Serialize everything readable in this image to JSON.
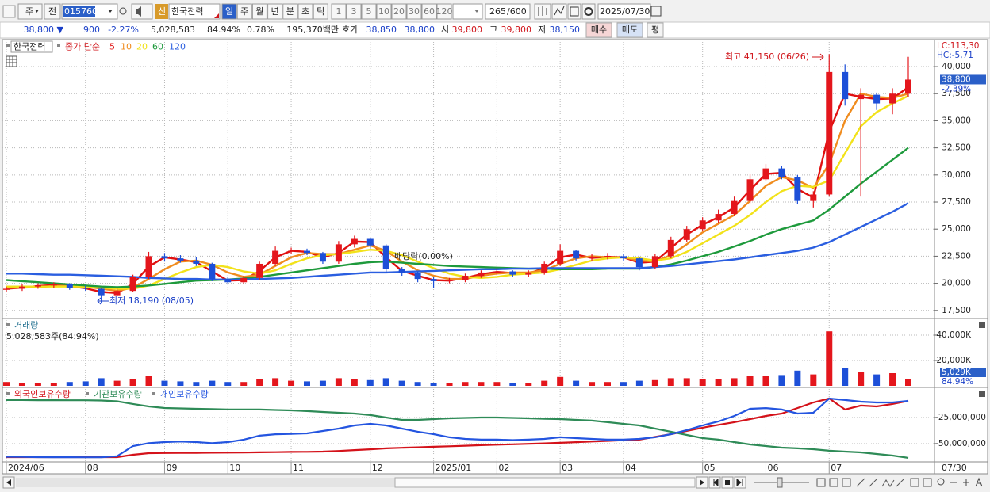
{
  "toolbar": {
    "period_type": "주",
    "prev": "전",
    "code": "015760",
    "badge": "신",
    "name": "한국전력",
    "periods": [
      "일",
      "주",
      "월",
      "년",
      "분",
      "초",
      "틱"
    ],
    "intervals": [
      "1",
      "3",
      "5",
      "10",
      "20",
      "30",
      "60",
      "120"
    ],
    "count": "265",
    "max_count": "/600",
    "date": "2025/07/30"
  },
  "info_bar": {
    "price": "38,800 ▼",
    "change": "900",
    "change_rate": "-2.27%",
    "volume": "5,028,583",
    "volume_ratio": "84.94%",
    "turnover": "0.78%",
    "amount": "195,370백만",
    "quote_label": "호가",
    "ask": "38,850",
    "bid": "38,800",
    "open_label": "시",
    "open": "39,800",
    "high_label": "고",
    "high": "39,800",
    "low_label": "저",
    "low": "38,150",
    "buy": "매수",
    "sell": "매도",
    "avg": "평"
  },
  "chart_data": [
    {
      "type": "candlestick",
      "name": "한국전력",
      "legend_title": "종가 단순",
      "categories": [
        "2024/06",
        null,
        null,
        null,
        null,
        "08",
        null,
        null,
        null,
        null,
        "09",
        null,
        null,
        null,
        "10",
        null,
        null,
        null,
        "11",
        null,
        null,
        null,
        null,
        "12",
        null,
        null,
        null,
        "2025/01",
        null,
        null,
        null,
        "02",
        null,
        null,
        null,
        "03",
        null,
        null,
        null,
        "04",
        null,
        null,
        null,
        null,
        "05",
        null,
        null,
        null,
        "06",
        null,
        null,
        null,
        "07",
        null,
        null,
        null,
        null,
        null
      ],
      "ohlc": {
        "open": [
          19400,
          19500,
          19700,
          19800,
          19900,
          19600,
          19500,
          18900,
          19300,
          20600,
          22500,
          22300,
          22100,
          21800,
          20400,
          20100,
          20500,
          21800,
          23000,
          23000,
          22800,
          22000,
          23600,
          24100,
          23500,
          21300,
          21000,
          20400,
          20200,
          20300,
          20700,
          21000,
          21100,
          20800,
          21000,
          21800,
          23000,
          22300,
          22400,
          22500,
          22300,
          21500,
          22500,
          24000,
          25000,
          25800,
          26400,
          27600,
          29600,
          30600,
          29800,
          27600,
          28200,
          39500,
          37000,
          37400,
          36600,
          37500
        ],
        "high": [
          19700,
          19900,
          20000,
          20100,
          20000,
          19800,
          19600,
          19500,
          20800,
          22900,
          22800,
          22600,
          22400,
          21900,
          20600,
          20700,
          22000,
          23400,
          23300,
          23200,
          22900,
          23900,
          24400,
          24200,
          23600,
          21500,
          21100,
          20600,
          20500,
          20900,
          21200,
          21300,
          21200,
          21200,
          22000,
          23600,
          23100,
          22700,
          22800,
          22700,
          22400,
          22700,
          24300,
          25300,
          26100,
          26800,
          28000,
          30100,
          31000,
          30800,
          30000,
          28500,
          41150,
          40200,
          38000,
          37600,
          38000,
          40900
        ],
        "low": [
          19200,
          19300,
          19500,
          19600,
          19400,
          19300,
          18190,
          18800,
          19200,
          20400,
          22000,
          21900,
          21600,
          20200,
          19900,
          19900,
          20300,
          21600,
          22700,
          22600,
          21800,
          21800,
          23300,
          23200,
          21000,
          20700,
          20100,
          19600,
          20000,
          20100,
          20500,
          20800,
          20600,
          20600,
          20800,
          21600,
          22100,
          22100,
          22200,
          22100,
          21200,
          21300,
          22300,
          23800,
          24800,
          25600,
          26200,
          27400,
          29400,
          29600,
          27300,
          27000,
          28000,
          36400,
          28000,
          36000,
          35600,
          37200
        ],
        "close": [
          19500,
          19700,
          19800,
          19900,
          19600,
          19500,
          18900,
          19300,
          20600,
          22500,
          22300,
          22100,
          21800,
          20400,
          20100,
          20500,
          21800,
          23000,
          23000,
          22800,
          22000,
          23600,
          24100,
          23500,
          21300,
          21000,
          20400,
          20200,
          20300,
          20700,
          21000,
          21100,
          20800,
          21000,
          21800,
          23000,
          22300,
          22400,
          22500,
          22300,
          21500,
          22500,
          24000,
          25000,
          25800,
          26400,
          27600,
          29600,
          30600,
          29800,
          27600,
          28200,
          39500,
          37000,
          37400,
          36600,
          37500,
          38800
        ]
      },
      "up_color": "#e4161c",
      "down_color": "#1d4fd8",
      "series": [
        {
          "name": "5",
          "color": "#e01010",
          "values": [
            19500,
            19600,
            19750,
            19850,
            19750,
            19550,
            19200,
            19100,
            19950,
            21550,
            22400,
            22200,
            21950,
            21100,
            20250,
            20300,
            21150,
            22400,
            23000,
            22900,
            22400,
            22800,
            23850,
            23800,
            22400,
            21150,
            20700,
            20300,
            20250,
            20500,
            20850,
            21050,
            20950,
            20900,
            21400,
            22400,
            22650,
            22350,
            22450,
            22400,
            21900,
            22000,
            23250,
            24500,
            25400,
            26100,
            27000,
            28600,
            30100,
            30200,
            28700,
            27900,
            34000,
            37500,
            37200,
            37000,
            37050,
            38100
          ]
        },
        {
          "name": "10",
          "color": "#f08c1e",
          "values": [
            19600,
            19600,
            19650,
            19750,
            19750,
            19700,
            19500,
            19300,
            19600,
            20400,
            21300,
            22000,
            22100,
            21700,
            21000,
            20600,
            20800,
            21600,
            22400,
            22800,
            22700,
            22700,
            23100,
            23500,
            23000,
            22000,
            21200,
            20700,
            20400,
            20400,
            20700,
            20900,
            21000,
            21000,
            21200,
            21800,
            22300,
            22500,
            22400,
            22400,
            22100,
            22000,
            22600,
            23600,
            24700,
            25500,
            26300,
            27600,
            29000,
            29800,
            29500,
            28800,
            31000,
            35000,
            37500,
            37200,
            37100,
            37500
          ]
        },
        {
          "name": "20",
          "color": "#f2e21a",
          "values": [
            19700,
            19700,
            19700,
            19700,
            19700,
            19700,
            19600,
            19500,
            19500,
            19800,
            20400,
            21000,
            21500,
            21700,
            21500,
            21100,
            20900,
            21200,
            21800,
            22300,
            22600,
            22700,
            22900,
            23100,
            23000,
            22600,
            22000,
            21400,
            20900,
            20600,
            20500,
            20600,
            20800,
            20900,
            21000,
            21300,
            21700,
            22100,
            22300,
            22400,
            22300,
            22100,
            22300,
            22900,
            23700,
            24500,
            25300,
            26300,
            27500,
            28500,
            29000,
            28900,
            29500,
            32000,
            34500,
            35800,
            36600,
            37300
          ]
        },
        {
          "name": "60",
          "color": "#1e9a3c",
          "values": [
            20300,
            20200,
            20100,
            20000,
            19900,
            19800,
            19700,
            19650,
            19700,
            19800,
            19950,
            20100,
            20250,
            20300,
            20350,
            20450,
            20600,
            20800,
            21000,
            21200,
            21400,
            21600,
            21800,
            21950,
            22000,
            21900,
            21800,
            21700,
            21600,
            21550,
            21500,
            21450,
            21400,
            21350,
            21350,
            21300,
            21300,
            21300,
            21350,
            21350,
            21350,
            21500,
            21750,
            22100,
            22500,
            22900,
            23400,
            23900,
            24500,
            25000,
            25400,
            25800,
            26800,
            28000,
            29200,
            30300,
            31400,
            32500
          ]
        },
        {
          "name": "120",
          "color": "#2a5ee0",
          "values": [
            20900,
            20900,
            20850,
            20800,
            20800,
            20750,
            20700,
            20650,
            20600,
            20500,
            20450,
            20400,
            20400,
            20350,
            20350,
            20350,
            20400,
            20450,
            20500,
            20600,
            20700,
            20800,
            20900,
            21000,
            21000,
            21050,
            21100,
            21150,
            21200,
            21250,
            21300,
            21300,
            21350,
            21350,
            21400,
            21400,
            21400,
            21400,
            21400,
            21400,
            21400,
            21500,
            21600,
            21750,
            21900,
            22050,
            22200,
            22400,
            22600,
            22800,
            23000,
            23300,
            23800,
            24500,
            25200,
            25900,
            26600,
            27400
          ]
        }
      ],
      "ylim": [
        16900,
        42270
      ],
      "yticks": [
        {
          "value": 17500,
          "label": "17,500"
        },
        {
          "value": 20000,
          "label": "20,000"
        },
        {
          "value": 22500,
          "label": "22,500"
        },
        {
          "value": 25000,
          "label": "25,000"
        },
        {
          "value": 27500,
          "label": "27,500"
        },
        {
          "value": 30000,
          "label": "30,000"
        },
        {
          "value": 32500,
          "label": "32,500"
        },
        {
          "value": 35000,
          "label": "35,000"
        },
        {
          "value": 37500,
          "label": "37,500"
        },
        {
          "value": 40000,
          "label": "40,000"
        }
      ],
      "grid": true,
      "annotations": [
        "최고 41,150 (06/26)",
        "최저 18,190 (08/05)",
        "배당락(0.00%)"
      ],
      "lc_label": "LC:113,30",
      "hc_label": "HC:-5,71",
      "current_label": "38,800",
      "current_change_label": "-2.39%"
    },
    {
      "type": "bar",
      "title": "거래량",
      "subtitle": "5,028,583주(84.94%)",
      "values": [
        3000,
        2500,
        2500,
        2500,
        3000,
        3500,
        6000,
        4000,
        5000,
        8000,
        4000,
        3500,
        3000,
        4000,
        3000,
        3000,
        5000,
        6000,
        4000,
        3500,
        4000,
        6000,
        5000,
        4500,
        6000,
        4000,
        3000,
        2500,
        2500,
        3000,
        3000,
        3000,
        2500,
        2500,
        4000,
        7000,
        4000,
        3000,
        3000,
        3000,
        4000,
        4500,
        6000,
        6000,
        5500,
        5000,
        6000,
        8000,
        8000,
        8500,
        12000,
        9000,
        43000,
        14000,
        11000,
        9000,
        10000,
        5029
      ],
      "ylim": [
        0,
        51250
      ],
      "yticks": [
        {
          "value": 20000,
          "label": "20,000K"
        },
        {
          "value": 40000,
          "label": "40,000K"
        }
      ],
      "grid": true,
      "current_label": "5,029K",
      "current_ratio_label": "84.94%"
    },
    {
      "type": "line",
      "series": [
        {
          "name": "외국인보유수량",
          "color": "#d4121a",
          "values": [
            -62900000,
            -62900000,
            -62900000,
            -62900000,
            -62900000,
            -62900000,
            -62900000,
            -62900000,
            -60600000,
            -59100000,
            -59000000,
            -58900000,
            -58800000,
            -58700000,
            -58600000,
            -58500000,
            -58300000,
            -58100000,
            -57900000,
            -57800000,
            -57600000,
            -57000000,
            -56200000,
            -55400000,
            -54500000,
            -54000000,
            -53500000,
            -53000000,
            -52500000,
            -52000000,
            -51500000,
            -51000000,
            -50600000,
            -50200000,
            -49700000,
            -49200000,
            -48600000,
            -48000000,
            -47400000,
            -46800000,
            -46200000,
            -43500000,
            -40900000,
            -37800000,
            -34800000,
            -32100000,
            -29500000,
            -26500000,
            -23500000,
            -21200000,
            -15900000,
            -10600000,
            -6800000,
            -17400000,
            -13600000,
            -14400000,
            -12100000,
            -9100000
          ]
        },
        {
          "name": "기관보유수량",
          "color": "#2e8b57",
          "values": [
            -8300000,
            -8300000,
            -8400000,
            -8400000,
            -8500000,
            -8500000,
            -8700000,
            -9500000,
            -12100000,
            -14400000,
            -15900000,
            -16300000,
            -16700000,
            -17000000,
            -17400000,
            -17400000,
            -17400000,
            -17800000,
            -18200000,
            -18900000,
            -19700000,
            -20500000,
            -21200000,
            -22700000,
            -25000000,
            -27300000,
            -27300000,
            -26500000,
            -25800000,
            -25400000,
            -25000000,
            -25000000,
            -25400000,
            -25800000,
            -26200000,
            -26500000,
            -27300000,
            -28000000,
            -29500000,
            -31100000,
            -32600000,
            -35600000,
            -38600000,
            -41700000,
            -44700000,
            -46200000,
            -48500000,
            -50800000,
            -52300000,
            -53800000,
            -54500000,
            -55300000,
            -56800000,
            -57600000,
            -58400000,
            -59900000,
            -61400000,
            -63600000
          ]
        },
        {
          "name": "개인보유수량",
          "color": "#2455e0",
          "values": [
            -62500000,
            -62700000,
            -62900000,
            -63000000,
            -63000000,
            -63100000,
            -63100000,
            -62000000,
            -52300000,
            -49500000,
            -48500000,
            -48000000,
            -48500000,
            -49500000,
            -48500000,
            -46200000,
            -42400000,
            -41000000,
            -40600000,
            -40200000,
            -37900000,
            -35600000,
            -32600000,
            -31100000,
            -32600000,
            -35600000,
            -38600000,
            -40900000,
            -43900000,
            -45500000,
            -46200000,
            -46200000,
            -46600000,
            -46200000,
            -45500000,
            -43900000,
            -44700000,
            -45500000,
            -46200000,
            -46200000,
            -45500000,
            -43900000,
            -40900000,
            -37100000,
            -32600000,
            -28800000,
            -23500000,
            -16700000,
            -16000000,
            -17400000,
            -21200000,
            -20500000,
            -6800000,
            -8300000,
            -9900000,
            -10600000,
            -10600000,
            -9100000
          ]
        }
      ],
      "ylim": [
        -66700000,
        1500000
      ],
      "yticks": [
        {
          "value": -25000000,
          "label": "-25,000,000"
        },
        {
          "value": -50000000,
          "label": "-50,000,000"
        }
      ],
      "grid": true
    }
  ],
  "x_axis_end": "07/30"
}
